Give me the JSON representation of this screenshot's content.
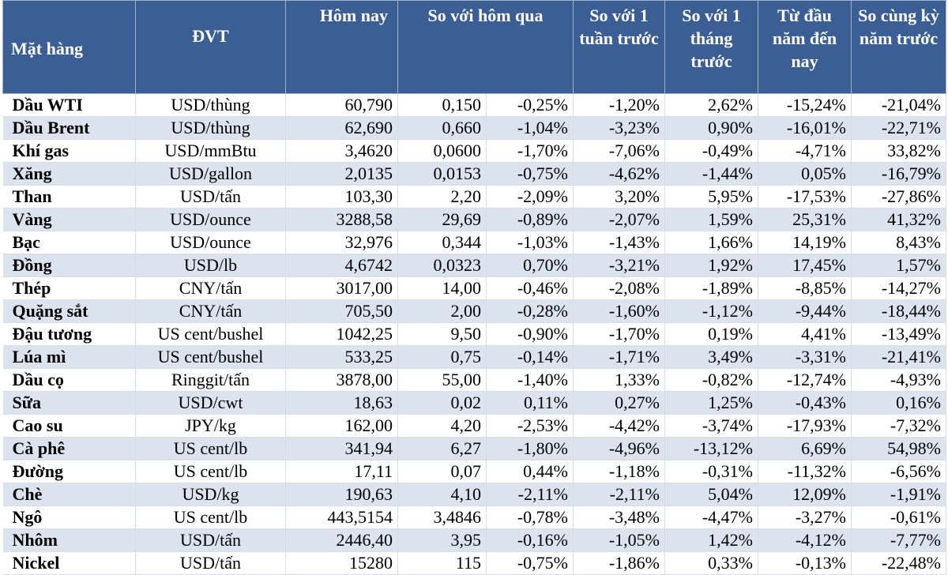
{
  "headers": {
    "item": "Mặt hàng",
    "unit": "ĐVT",
    "today": "Hôm nay",
    "vs_yesterday": "So với hôm qua",
    "vs_week": "So với 1 tuần trước",
    "vs_month": "So với 1 tháng trước",
    "ytd": "Từ đầu năm đến nay",
    "yoy": "So cùng kỳ năm trước"
  },
  "rows": [
    {
      "name": "Dầu WTI",
      "unit": "USD/thùng",
      "today": "60,790",
      "chg": "0,150",
      "chg_pct": "-0,25%",
      "week": "-1,20%",
      "month": "2,62%",
      "ytd": "-15,24%",
      "yoy": "-21,04%"
    },
    {
      "name": "Dầu Brent",
      "unit": "USD/thùng",
      "today": "62,690",
      "chg": "0,660",
      "chg_pct": "-1,04%",
      "week": "-3,23%",
      "month": "0,90%",
      "ytd": "-16,01%",
      "yoy": "-22,71%"
    },
    {
      "name": "Khí gas",
      "unit": "USD/mmBtu",
      "today": "3,4620",
      "chg": "0,0600",
      "chg_pct": "-1,70%",
      "week": "-7,06%",
      "month": "-0,49%",
      "ytd": "-4,71%",
      "yoy": "33,82%"
    },
    {
      "name": "Xăng",
      "unit": "USD/gallon",
      "today": "2,0135",
      "chg": "0,0153",
      "chg_pct": "-0,75%",
      "week": "-4,62%",
      "month": "-1,44%",
      "ytd": "0,05%",
      "yoy": "-16,79%"
    },
    {
      "name": "Than",
      "unit": "USD/tấn",
      "today": "103,30",
      "chg": "2,20",
      "chg_pct": "-2,09%",
      "week": "3,20%",
      "month": "5,95%",
      "ytd": "-17,53%",
      "yoy": "-27,86%"
    },
    {
      "name": "Vàng",
      "unit": "USD/ounce",
      "today": "3288,58",
      "chg": "29,69",
      "chg_pct": "-0,89%",
      "week": "-2,07%",
      "month": "1,59%",
      "ytd": "25,31%",
      "yoy": "41,32%"
    },
    {
      "name": "Bạc",
      "unit": "USD/ounce",
      "today": "32,976",
      "chg": "0,344",
      "chg_pct": "-1,03%",
      "week": "-1,43%",
      "month": "1,66%",
      "ytd": "14,19%",
      "yoy": "8,43%"
    },
    {
      "name": "Đồng",
      "unit": "USD/lb",
      "today": "4,6742",
      "chg": "0,0323",
      "chg_pct": "0,70%",
      "week": "-3,21%",
      "month": "1,92%",
      "ytd": "17,45%",
      "yoy": "1,57%"
    },
    {
      "name": "Thép",
      "unit": "CNY/tấn",
      "today": "3017,00",
      "chg": "14,00",
      "chg_pct": "-0,46%",
      "week": "-2,08%",
      "month": "-1,89%",
      "ytd": "-8,85%",
      "yoy": "-14,27%"
    },
    {
      "name": "Quặng sắt",
      "unit": "CNY/tấn",
      "today": "705,50",
      "chg": "2,00",
      "chg_pct": "-0,28%",
      "week": "-1,60%",
      "month": "-1,12%",
      "ytd": "-9,44%",
      "yoy": "-18,44%"
    },
    {
      "name": "Đậu tương",
      "unit": "US cent/bushel",
      "today": "1042,25",
      "chg": "9,50",
      "chg_pct": "-0,90%",
      "week": "-1,70%",
      "month": "0,19%",
      "ytd": "4,41%",
      "yoy": "-13,49%"
    },
    {
      "name": "Lúa mì",
      "unit": "US cent/bushel",
      "today": "533,25",
      "chg": "0,75",
      "chg_pct": "-0,14%",
      "week": "-1,71%",
      "month": "3,49%",
      "ytd": "-3,31%",
      "yoy": "-21,41%"
    },
    {
      "name": "Dầu cọ",
      "unit": "Ringgit/tấn",
      "today": "3878,00",
      "chg": "55,00",
      "chg_pct": "-1,40%",
      "week": "1,33%",
      "month": "-0,82%",
      "ytd": "-12,74%",
      "yoy": "-4,93%"
    },
    {
      "name": "Sữa",
      "unit": "USD/cwt",
      "today": "18,63",
      "chg": "0,02",
      "chg_pct": "0,11%",
      "week": "0,27%",
      "month": "1,25%",
      "ytd": "-0,43%",
      "yoy": "0,16%"
    },
    {
      "name": "Cao su",
      "unit": "JPY/kg",
      "today": "162,00",
      "chg": "4,20",
      "chg_pct": "-2,53%",
      "week": "-4,42%",
      "month": "-3,74%",
      "ytd": "-17,93%",
      "yoy": "-7,32%"
    },
    {
      "name": "Cà phê",
      "unit": "US cent/lb",
      "today": "341,94",
      "chg": "6,27",
      "chg_pct": "-1,80%",
      "week": "-4,96%",
      "month": "-13,12%",
      "ytd": "6,69%",
      "yoy": "54,98%"
    },
    {
      "name": "Đường",
      "unit": "US cent/lb",
      "today": "17,11",
      "chg": "0,07",
      "chg_pct": "0,44%",
      "week": "-1,18%",
      "month": "-0,31%",
      "ytd": "-11,32%",
      "yoy": "-6,56%"
    },
    {
      "name": "Chè",
      "unit": "USD/kg",
      "today": "190,63",
      "chg": "4,10",
      "chg_pct": "-2,11%",
      "week": "-2,11%",
      "month": "5,04%",
      "ytd": "12,09%",
      "yoy": "-1,91%"
    },
    {
      "name": "Ngô",
      "unit": "US cent/lb",
      "today": "443,5154",
      "chg": "3,4846",
      "chg_pct": "-0,78%",
      "week": "-3,48%",
      "month": "-4,47%",
      "ytd": "-3,27%",
      "yoy": "-0,61%"
    },
    {
      "name": "Nhôm",
      "unit": "USD/tấn",
      "today": "2446,40",
      "chg": "3,95",
      "chg_pct": "-0,16%",
      "week": "-1,05%",
      "month": "1,42%",
      "ytd": "-4,12%",
      "yoy": "-7,77%"
    },
    {
      "name": "Nickel",
      "unit": "USD/tấn",
      "today": "15280",
      "chg": "115",
      "chg_pct": "-0,75%",
      "week": "-1,86%",
      "month": "0,33%",
      "ytd": "-0,13%",
      "yoy": "-22,48%"
    }
  ]
}
